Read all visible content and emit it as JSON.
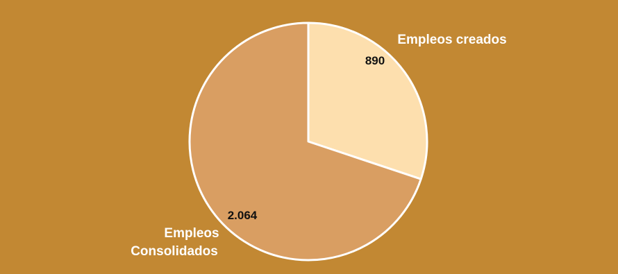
{
  "chart_data": {
    "type": "pie",
    "title": "",
    "categories": [
      "Empleos creados",
      "Empleos Consolidados"
    ],
    "values": [
      890,
      2064
    ],
    "value_labels": [
      "890",
      "2.064"
    ],
    "category_label_lines": [
      [
        "Empleos creados"
      ],
      [
        "Empleos",
        "Consolidados"
      ]
    ],
    "colors": [
      "#fddfae",
      "#d99e62"
    ],
    "slice_border_color": "#ffffff",
    "start_angle_deg": 0,
    "direction": "clockwise",
    "legend": "none"
  },
  "colors": {
    "background": "#c28833"
  }
}
